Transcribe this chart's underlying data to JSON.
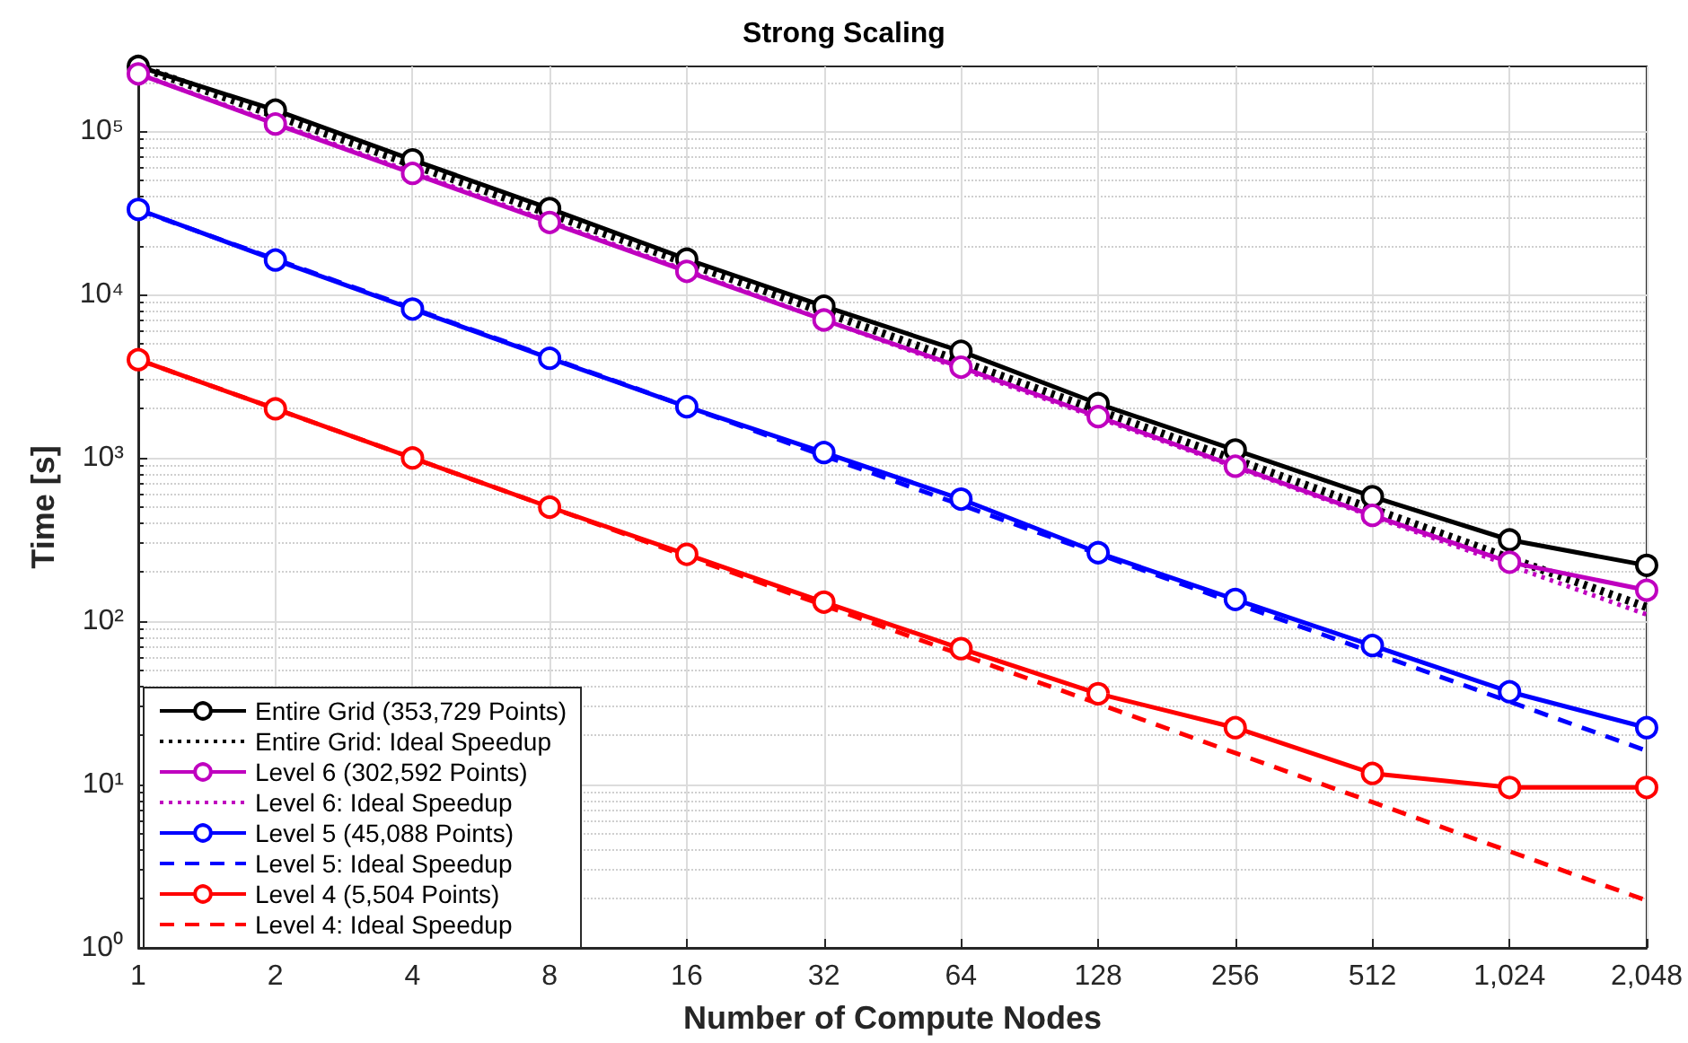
{
  "chart_data": {
    "type": "line",
    "title": "Strong Scaling",
    "xlabel": "Number of Compute Nodes",
    "ylabel": "Time [s]",
    "log": "xy",
    "grid": true,
    "legend": "bottom left",
    "x": [
      1,
      2,
      4,
      8,
      16,
      32,
      64,
      128,
      256,
      512,
      1024,
      2048
    ],
    "xlim": [
      1,
      2048
    ],
    "xticks": [
      1,
      2,
      4,
      8,
      16,
      32,
      64,
      128,
      256,
      512,
      {
        "value": 1024,
        "label": "1,024"
      },
      {
        "value": 2048,
        "label": "2,048"
      }
    ],
    "ylim": [
      1,
      250000
    ],
    "yticks": [
      {
        "value": 1,
        "label": "10⁰"
      },
      {
        "value": 10,
        "label": "10¹"
      },
      {
        "value": 100,
        "label": "10²"
      },
      {
        "value": 1000,
        "label": "10³"
      },
      {
        "value": 10000,
        "label": "10⁴"
      },
      {
        "value": 100000,
        "label": "10⁵"
      }
    ],
    "series": [
      {
        "name": "Entire Grid (353,729 Points)",
        "color": "#000000",
        "marker": "circle",
        "line_style": "solid",
        "values": [
          250000,
          135000,
          67000,
          33700,
          16500,
          8500,
          4500,
          2150,
          1120,
          580,
          315,
          220
        ]
      },
      {
        "name": "Entire Grid: Ideal Speedup",
        "color": "#000000",
        "marker": "none",
        "line_style": "dotted",
        "values": [
          250000,
          125000,
          62500,
          31250,
          15625,
          7813,
          3906,
          1953,
          977,
          488,
          244,
          122
        ]
      },
      {
        "name": "Level 6 (302,592 Points)",
        "color": "#bf00bf",
        "marker": "circle",
        "line_style": "solid",
        "values": [
          225000,
          111000,
          55300,
          27700,
          13900,
          7000,
          3600,
          1790,
          890,
          445,
          230,
          155
        ]
      },
      {
        "name": "Level 6: Ideal Speedup",
        "color": "#bf00bf",
        "marker": "none",
        "line_style": "dotted",
        "values": [
          225000,
          112500,
          56250,
          28125,
          14063,
          7031,
          3516,
          1758,
          879,
          439,
          220,
          110
        ]
      },
      {
        "name": "Level 5 (45,088 Points)",
        "color": "#0000ff",
        "marker": "circle",
        "line_style": "solid",
        "values": [
          33300,
          16300,
          8170,
          4080,
          2060,
          1080,
          560,
          263,
          136,
          71,
          37,
          22.3
        ]
      },
      {
        "name": "Level 5: Ideal Speedup",
        "color": "#0000ff",
        "marker": "none",
        "line_style": "dashed",
        "values": [
          33000,
          16500,
          8250,
          4125,
          2063,
          1031,
          516,
          258,
          129,
          64.5,
          32.2,
          16.1
        ]
      },
      {
        "name": "Level 4 (5,504 Points)",
        "color": "#ff0000",
        "marker": "circle",
        "line_style": "solid",
        "values": [
          4000,
          2000,
          1000,
          500,
          257,
          131,
          68,
          36,
          22.3,
          11.7,
          9.6,
          9.6
        ]
      },
      {
        "name": "Level 4: Ideal Speedup",
        "color": "#ff0000",
        "marker": "none",
        "line_style": "dashed",
        "values": [
          4000,
          2000,
          1000,
          500,
          250,
          125,
          62.5,
          31.3,
          15.6,
          7.8,
          3.9,
          1.95
        ]
      }
    ]
  }
}
